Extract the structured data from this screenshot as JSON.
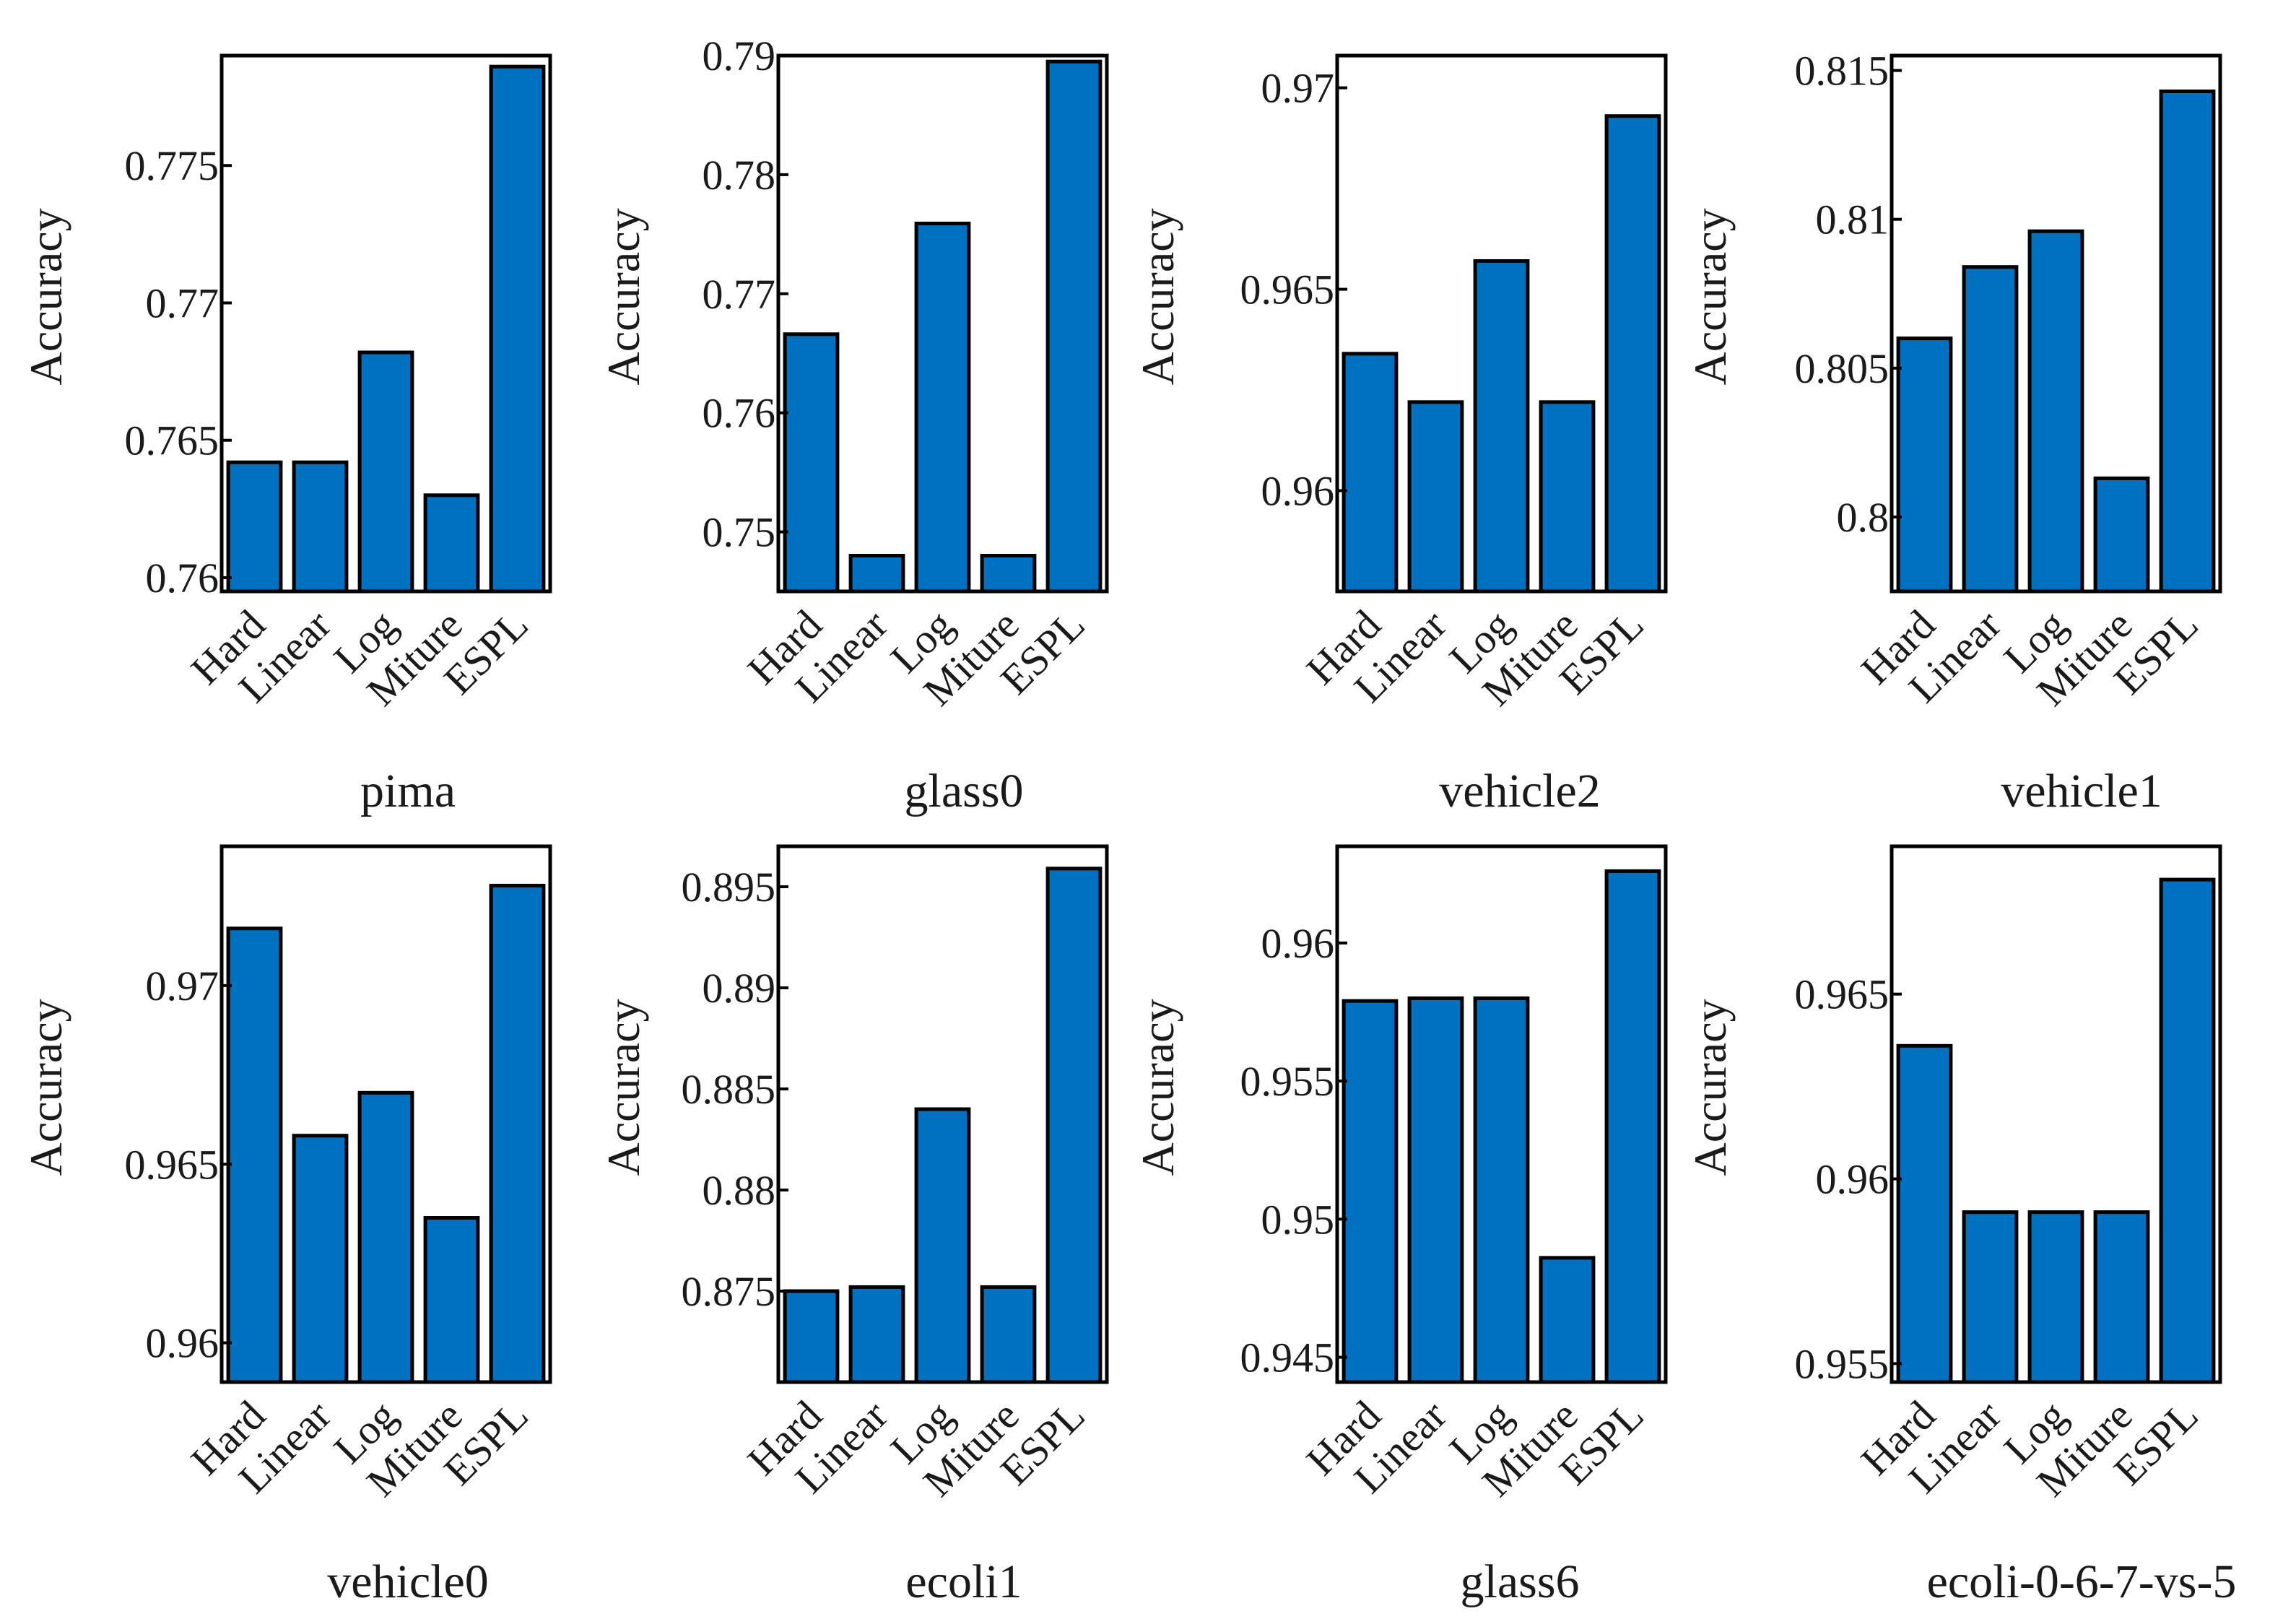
{
  "colors": {
    "bar": "#0070C0",
    "edge": "#000000",
    "axis": "#000000"
  },
  "chart_data": [
    {
      "type": "bar",
      "title": "pima",
      "xlabel": "",
      "ylabel": "Accuracy",
      "categories": [
        "Hard",
        "Linear",
        "Log",
        "Miture",
        "ESPL"
      ],
      "values": [
        0.7642,
        0.7642,
        0.7682,
        0.763,
        0.7786
      ],
      "ylim": [
        0.7595,
        0.779
      ],
      "yticks": [
        0.76,
        0.765,
        0.77,
        0.775
      ],
      "ytick_labels": [
        "0.76",
        "0.765",
        "0.77",
        "0.775"
      ],
      "grid": false
    },
    {
      "type": "bar",
      "title": "glass0",
      "xlabel": "",
      "ylabel": "Accuracy",
      "categories": [
        "Hard",
        "Linear",
        "Log",
        "Miture",
        "ESPL"
      ],
      "values": [
        0.7666,
        0.748,
        0.7759,
        0.748,
        0.7895
      ],
      "ylim": [
        0.745,
        0.79
      ],
      "yticks": [
        0.75,
        0.76,
        0.77,
        0.78,
        0.79
      ],
      "ytick_labels": [
        "0.75",
        "0.76",
        "0.77",
        "0.78",
        "0.79"
      ],
      "grid": false
    },
    {
      "type": "bar",
      "title": "vehicle2",
      "xlabel": "",
      "ylabel": "Accuracy",
      "categories": [
        "Hard",
        "Linear",
        "Log",
        "Miture",
        "ESPL"
      ],
      "values": [
        0.9634,
        0.9622,
        0.9657,
        0.9622,
        0.9693
      ],
      "ylim": [
        0.9575,
        0.9708
      ],
      "yticks": [
        0.96,
        0.965,
        0.97
      ],
      "ytick_labels": [
        "0.96",
        "0.965",
        "0.97"
      ],
      "grid": false
    },
    {
      "type": "bar",
      "title": "vehicle1",
      "xlabel": "",
      "ylabel": "Accuracy",
      "categories": [
        "Hard",
        "Linear",
        "Log",
        "Miture",
        "ESPL"
      ],
      "values": [
        0.806,
        0.8084,
        0.8096,
        0.8013,
        0.8143
      ],
      "ylim": [
        0.7975,
        0.8155
      ],
      "yticks": [
        0.8,
        0.805,
        0.81,
        0.815
      ],
      "ytick_labels": [
        "0.8",
        "0.805",
        "0.81",
        "0.815"
      ],
      "grid": false
    },
    {
      "type": "bar",
      "title": "vehicle0",
      "xlabel": "",
      "ylabel": "Accuracy",
      "categories": [
        "Hard",
        "Linear",
        "Log",
        "Miture",
        "ESPL"
      ],
      "values": [
        0.9716,
        0.9658,
        0.967,
        0.9635,
        0.9728
      ],
      "ylim": [
        0.9589,
        0.9739
      ],
      "yticks": [
        0.96,
        0.965,
        0.97
      ],
      "ytick_labels": [
        "0.96",
        "0.965",
        "0.97"
      ],
      "grid": false
    },
    {
      "type": "bar",
      "title": "ecoli1",
      "xlabel": "",
      "ylabel": "Accuracy",
      "categories": [
        "Hard",
        "Linear",
        "Log",
        "Miture",
        "ESPL"
      ],
      "values": [
        0.875,
        0.8752,
        0.884,
        0.8752,
        0.8959
      ],
      "ylim": [
        0.8705,
        0.897
      ],
      "yticks": [
        0.875,
        0.88,
        0.885,
        0.89,
        0.895
      ],
      "ytick_labels": [
        "0.875",
        "0.88",
        "0.885",
        "0.89",
        "0.895"
      ],
      "grid": false
    },
    {
      "type": "bar",
      "title": "glass6",
      "xlabel": "",
      "ylabel": "Accuracy",
      "categories": [
        "Hard",
        "Linear",
        "Log",
        "Miture",
        "ESPL"
      ],
      "values": [
        0.9579,
        0.958,
        0.958,
        0.9486,
        0.9626
      ],
      "ylim": [
        0.9441,
        0.9635
      ],
      "yticks": [
        0.945,
        0.95,
        0.955,
        0.96
      ],
      "ytick_labels": [
        "0.945",
        "0.95",
        "0.955",
        "0.96"
      ],
      "grid": false
    },
    {
      "type": "bar",
      "title": "ecoli-0-6-7-vs-5",
      "xlabel": "",
      "ylabel": "Accuracy",
      "categories": [
        "Hard",
        "Linear",
        "Log",
        "Miture",
        "ESPL"
      ],
      "values": [
        0.9636,
        0.9591,
        0.9591,
        0.9591,
        0.9681
      ],
      "ylim": [
        0.9545,
        0.969
      ],
      "yticks": [
        0.955,
        0.96,
        0.965
      ],
      "ytick_labels": [
        "0.955",
        "0.96",
        "0.965"
      ],
      "grid": false
    }
  ]
}
